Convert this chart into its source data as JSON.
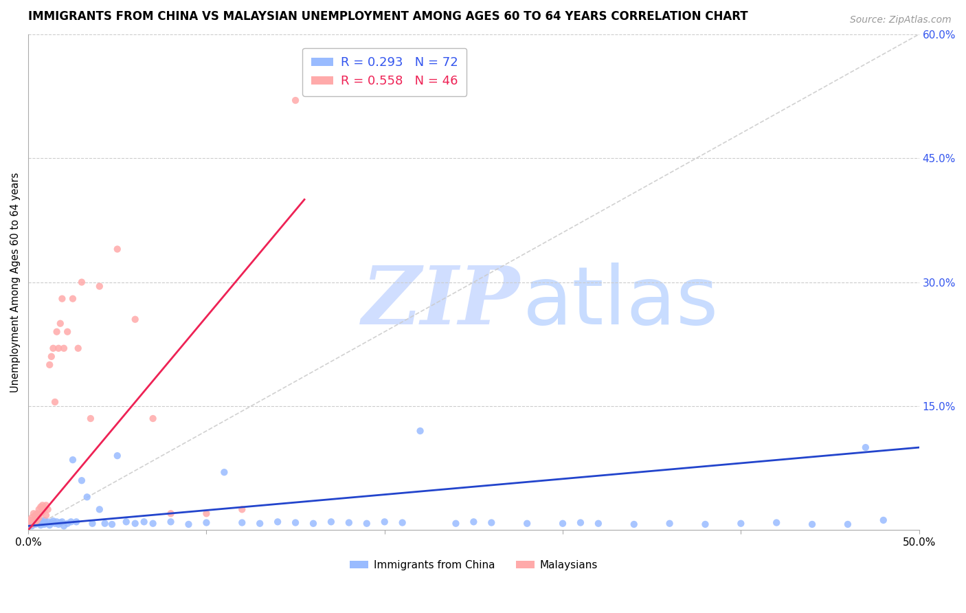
{
  "title": "IMMIGRANTS FROM CHINA VS MALAYSIAN UNEMPLOYMENT AMONG AGES 60 TO 64 YEARS CORRELATION CHART",
  "source": "Source: ZipAtlas.com",
  "ylabel": "Unemployment Among Ages 60 to 64 years",
  "xlim": [
    0.0,
    0.5
  ],
  "ylim": [
    0.0,
    0.6
  ],
  "blue_color": "#99BBFF",
  "pink_color": "#FFAAAA",
  "blue_line_color": "#2244CC",
  "pink_line_color": "#EE2255",
  "diag_line_color": "#CCCCCC",
  "right_tick_color": "#3355EE",
  "legend_r_blue": "R = 0.293",
  "legend_n_blue": "N = 72",
  "legend_r_pink": "R = 0.558",
  "legend_n_pink": "N = 46",
  "blue_scatter_x": [
    0.001,
    0.002,
    0.003,
    0.003,
    0.004,
    0.005,
    0.005,
    0.006,
    0.006,
    0.007,
    0.007,
    0.008,
    0.008,
    0.009,
    0.009,
    0.01,
    0.011,
    0.012,
    0.013,
    0.014,
    0.015,
    0.016,
    0.017,
    0.018,
    0.019,
    0.02,
    0.022,
    0.024,
    0.025,
    0.027,
    0.03,
    0.033,
    0.036,
    0.04,
    0.043,
    0.047,
    0.05,
    0.055,
    0.06,
    0.065,
    0.07,
    0.08,
    0.09,
    0.1,
    0.11,
    0.12,
    0.13,
    0.14,
    0.15,
    0.16,
    0.17,
    0.18,
    0.19,
    0.2,
    0.21,
    0.22,
    0.24,
    0.25,
    0.26,
    0.28,
    0.3,
    0.31,
    0.32,
    0.34,
    0.36,
    0.38,
    0.4,
    0.42,
    0.44,
    0.46,
    0.47,
    0.48
  ],
  "blue_scatter_y": [
    0.01,
    0.005,
    0.008,
    0.012,
    0.007,
    0.01,
    0.015,
    0.008,
    0.012,
    0.01,
    0.006,
    0.008,
    0.01,
    0.007,
    0.012,
    0.008,
    0.01,
    0.006,
    0.009,
    0.011,
    0.008,
    0.01,
    0.007,
    0.009,
    0.01,
    0.005,
    0.008,
    0.01,
    0.085,
    0.01,
    0.06,
    0.04,
    0.008,
    0.025,
    0.008,
    0.007,
    0.09,
    0.01,
    0.008,
    0.01,
    0.008,
    0.01,
    0.007,
    0.009,
    0.07,
    0.009,
    0.008,
    0.01,
    0.009,
    0.008,
    0.01,
    0.009,
    0.008,
    0.01,
    0.009,
    0.12,
    0.008,
    0.01,
    0.009,
    0.008,
    0.008,
    0.009,
    0.008,
    0.007,
    0.008,
    0.007,
    0.008,
    0.009,
    0.007,
    0.007,
    0.1,
    0.012
  ],
  "pink_scatter_x": [
    0.001,
    0.001,
    0.001,
    0.002,
    0.002,
    0.002,
    0.003,
    0.003,
    0.003,
    0.004,
    0.004,
    0.004,
    0.005,
    0.005,
    0.006,
    0.006,
    0.007,
    0.007,
    0.008,
    0.008,
    0.009,
    0.01,
    0.01,
    0.011,
    0.012,
    0.013,
    0.014,
    0.015,
    0.016,
    0.017,
    0.018,
    0.019,
    0.02,
    0.022,
    0.025,
    0.028,
    0.03,
    0.035,
    0.04,
    0.05,
    0.06,
    0.07,
    0.08,
    0.1,
    0.12,
    0.15
  ],
  "pink_scatter_y": [
    0.008,
    0.01,
    0.012,
    0.007,
    0.01,
    0.015,
    0.008,
    0.012,
    0.02,
    0.01,
    0.015,
    0.018,
    0.012,
    0.02,
    0.015,
    0.025,
    0.02,
    0.028,
    0.022,
    0.03,
    0.025,
    0.018,
    0.03,
    0.025,
    0.2,
    0.21,
    0.22,
    0.155,
    0.24,
    0.22,
    0.25,
    0.28,
    0.22,
    0.24,
    0.28,
    0.22,
    0.3,
    0.135,
    0.295,
    0.34,
    0.255,
    0.135,
    0.02,
    0.02,
    0.025,
    0.52
  ],
  "pink_line_x": [
    0.0,
    0.155
  ],
  "pink_line_y": [
    0.0,
    0.4
  ],
  "blue_line_x": [
    0.0,
    0.5
  ],
  "blue_line_y": [
    0.005,
    0.1
  ]
}
